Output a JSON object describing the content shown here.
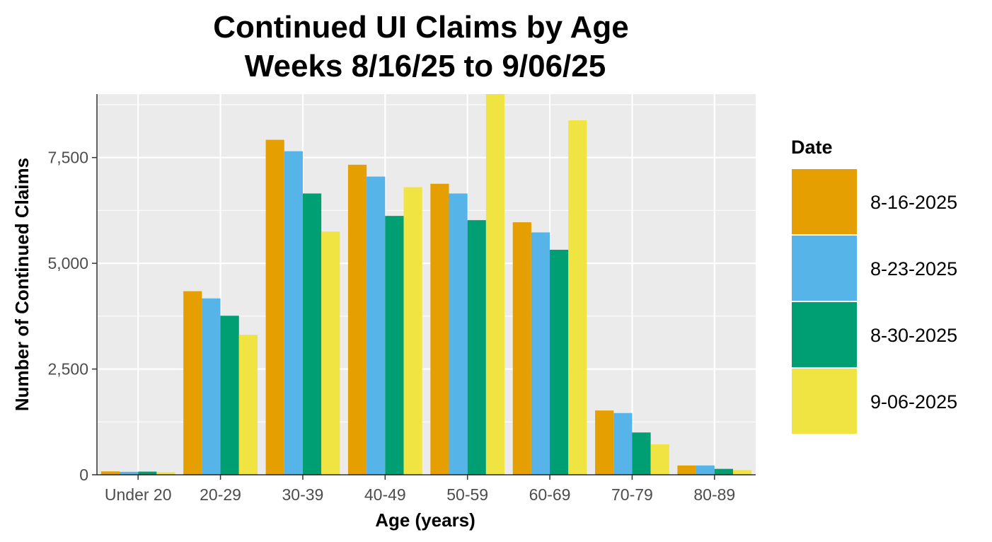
{
  "chart_data": {
    "type": "bar",
    "title": "Continued UI Claims by Age",
    "subtitle": "Weeks 8/16/25 to 9/06/25",
    "xlabel": "Age (years)",
    "ylabel": "Number of Continued Claims",
    "ylim": [
      0,
      9000
    ],
    "yticks": [
      0,
      2500,
      5000,
      7500
    ],
    "ytick_labels": [
      "0",
      "2,500",
      "5,000",
      "7,500"
    ],
    "grid": true,
    "legend_title": "Date",
    "legend_position": "right",
    "categories": [
      "Under 20",
      "20-29",
      "30-39",
      "40-49",
      "50-59",
      "60-69",
      "70-79",
      "80-89"
    ],
    "series": [
      {
        "name": "8-16-2025",
        "color": "#E69F00",
        "values": [
          80,
          4340,
          7920,
          7330,
          6880,
          5970,
          1520,
          220
        ]
      },
      {
        "name": "8-23-2025",
        "color": "#56B4E9",
        "values": [
          70,
          4170,
          7650,
          7050,
          6650,
          5730,
          1460,
          220
        ]
      },
      {
        "name": "8-30-2025",
        "color": "#009E73",
        "values": [
          75,
          3760,
          6650,
          6120,
          6020,
          5320,
          1000,
          140
        ]
      },
      {
        "name": "9-06-2025",
        "color": "#F0E442",
        "values": [
          60,
          3310,
          5750,
          6800,
          9100,
          8380,
          720,
          110
        ]
      }
    ]
  }
}
